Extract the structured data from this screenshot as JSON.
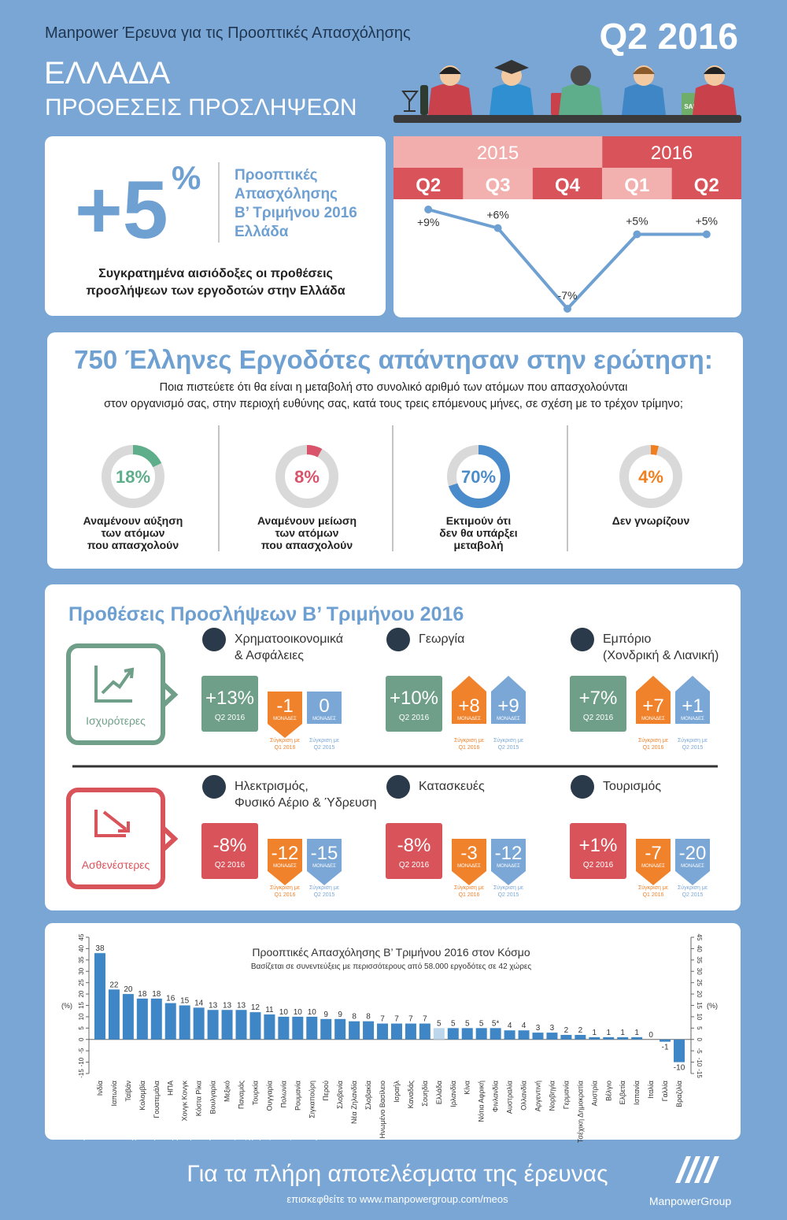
{
  "header": {
    "survey": "Manpower Έρευνα για τις Προοπτικές Απασχόλησης",
    "period": "Q2 2016",
    "country": "ΕΛΛΑΔΑ",
    "subtitle": "ΠΡΟΘΕΣΕΙΣ ΠΡΟΣΛΗΨΕΩΝ",
    "sale": "SALE"
  },
  "summary": {
    "headline": "+5",
    "unit": "%",
    "label": [
      "Προοπτικές",
      "Απασχόλησης",
      "Β’ Τριμήνου 2016",
      "Ελλάδα"
    ],
    "note": [
      "Συγκρατημένα αισιόδοξες οι προθέσεις",
      "προσλήψεων των εργοδοτών στην Ελλάδα"
    ]
  },
  "chart_data": [
    {
      "type": "line",
      "color": "#6fa0d2",
      "periods": [
        {
          "year": "2015",
          "categories": [
            "Q2",
            "Q3",
            "Q4"
          ],
          "values": [
            9,
            6,
            -7
          ],
          "value_labels": [
            "+9%",
            "+6%",
            "-7%"
          ]
        },
        {
          "year": "2016",
          "categories": [
            "Q1",
            "Q2"
          ],
          "values": [
            5,
            5
          ],
          "value_labels": [
            "+5%",
            "+5%"
          ]
        }
      ]
    },
    {
      "type": "bar",
      "title": "Προοπτικές Απασχόλησης Β’ Τριμήνου 2016 στον Κόσμο",
      "subtitle": "Βασίζεται σε συνεντεύξεις με περισσότερους από 58.000 εργοδότες σε 42 χώρες",
      "ylabel": "(%)",
      "categories": [
        "Ινδία",
        "Ιαπωνία",
        "Ταϊβάν",
        "Κολομβία",
        "Γουατεμάλα",
        "ΗΠΑ",
        "Χονγκ Κονγκ",
        "Κόστα Ρίκα",
        "Βουλγαρία",
        "Μεξικό",
        "Παναμάς",
        "Τουρκία",
        "Ουγγαρία",
        "Πολωνία",
        "Ρουμανία",
        "Σιγκαπούρη",
        "Περού",
        "Σλοβενία",
        "Νέα Ζηλανδία",
        "Σλοβακία",
        "Ηνωμένο Βασίλειο",
        "Ισραήλ",
        "Καναδάς",
        "Σουηδία",
        "Ελλάδα",
        "Ιρλανδία",
        "Κίνα",
        "Νότια Αφρική",
        "Φινλανδία",
        "Αυστραλία",
        "Ολλανδία",
        "Αργεντινή",
        "Νορβηγία",
        "Γερμανία",
        "Τσέχικη Δημοκρατία",
        "Αυστρία",
        "Βέλγιο",
        "Ελβετία",
        "Ισπανία",
        "Ιταλία",
        "Γαλλία",
        "Βραζιλία"
      ],
      "values": [
        38,
        22,
        20,
        18,
        18,
        16,
        15,
        14,
        13,
        13,
        13,
        12,
        11,
        10,
        10,
        10,
        9,
        9,
        8,
        8,
        7,
        7,
        7,
        7,
        5,
        5,
        5,
        5,
        5,
        4,
        4,
        3,
        3,
        2,
        2,
        1,
        1,
        1,
        1,
        0,
        -1,
        -10
      ],
      "value_labels": [
        "38",
        "22",
        "20",
        "18",
        "18",
        "16",
        "15",
        "14",
        "13",
        "13",
        "13",
        "12",
        "11",
        "10",
        "10",
        "10",
        "9",
        "9",
        "8",
        "8",
        "7",
        "7",
        "7",
        "7",
        "5",
        "5",
        "5",
        "5",
        "5*",
        "4",
        "4",
        "3",
        "3",
        "2",
        "2",
        "1",
        "1",
        "1",
        "1",
        "0",
        "-1",
        "-10"
      ],
      "color": "#3f86c6",
      "highlight": "Ελλάδα",
      "highlight_color": "#bcd6ec",
      "ylim": [
        -15,
        45
      ],
      "yticks": [
        -15,
        -10,
        -5,
        0,
        5,
        10,
        15,
        20,
        25,
        30,
        35,
        40,
        45
      ]
    }
  ],
  "survey": {
    "title": "750 Έλληνες Εργοδότες απάντησαν στην ερώτηση:",
    "question": [
      "Ποια πιστεύετε ότι θα είναι η μεταβολή στο συνολικό αριθμό των ατόμων που απασχολούνται",
      "στον οργανισμό σας, στην περιοχή ευθύνης σας, κατά τους τρεις επόμενους μήνες, σε σχέση με το τρέχον τρίμηνο;"
    ],
    "values": [
      18,
      8,
      70,
      4
    ],
    "value_labels": [
      "18%",
      "8%",
      "70%",
      "4%"
    ],
    "labels": [
      [
        "Αναμένουν αύξηση",
        "των ατόμων",
        "που απασχολούν"
      ],
      [
        "Αναμένουν μείωση",
        "των ατόμων",
        "που απασχολούν"
      ],
      [
        "Εκτιμούν ότι",
        "δεν θα υπάρξει",
        "μεταβολή"
      ],
      [
        "Δεν γνωρίζουν"
      ]
    ],
    "colors": [
      "#5fae8b",
      "#d9536a",
      "#4a8ccb",
      "#f07f1f"
    ]
  },
  "sectors": {
    "title": "Προθέσεις Προσλήψεων Β’ Τριμήνου 2016",
    "period": "Q2 2016",
    "unit": "ΜΟΝΑΔΕΣ",
    "caption_q1": [
      "Σύγκριση με",
      "Q1 2016"
    ],
    "caption_q2_2015": [
      "Σύγκριση με",
      "Q2 2015"
    ],
    "groups": [
      {
        "label": "Ισχυρότερες",
        "color": "#6f9e89",
        "items": [
          {
            "name": [
              "Χρηματοοικονομικά",
              "& Ασφάλειες"
            ],
            "outlook": 13,
            "outlook_label": "+13%",
            "vs_q1": -1,
            "vs_q1_label": "-1",
            "vs_q2_2015": 0,
            "vs_q2_2015_label": "0"
          },
          {
            "name": [
              "Γεωργία"
            ],
            "outlook": 10,
            "outlook_label": "+10%",
            "vs_q1": 8,
            "vs_q1_label": "+8",
            "vs_q2_2015": 9,
            "vs_q2_2015_label": "+9"
          },
          {
            "name": [
              "Εμπόριο",
              "(Χονδρική & Λιανική)"
            ],
            "outlook": 7,
            "outlook_label": "+7%",
            "vs_q1": 7,
            "vs_q1_label": "+7",
            "vs_q2_2015": 1,
            "vs_q2_2015_label": "+1"
          }
        ]
      },
      {
        "label": "Ασθενέστερες",
        "color": "#d9535a",
        "items": [
          {
            "name": [
              "Ηλεκτρισμός,",
              "Φυσικό Αέριο & Ύδρευση"
            ],
            "outlook": -8,
            "outlook_label": "-8%",
            "vs_q1": -12,
            "vs_q1_label": "-12",
            "vs_q2_2015": -15,
            "vs_q2_2015_label": "-15"
          },
          {
            "name": [
              "Κατασκευές"
            ],
            "outlook": -8,
            "outlook_label": "-8%",
            "vs_q1": -3,
            "vs_q1_label": "-3",
            "vs_q2_2015": -12,
            "vs_q2_2015_label": "-12"
          },
          {
            "name": [
              "Τουρισμός"
            ],
            "outlook": 1,
            "outlook_label": "+1%",
            "vs_q1": -7,
            "vs_q1_label": "-7",
            "vs_q2_2015": -20,
            "vs_q2_2015_label": "-20"
          }
        ]
      }
    ]
  },
  "footnote": "*Τα δεδομένα είναι εποχικά προσαρμοσμένα για όλες τις χώρες εκτός από τη Φινλανδία.",
  "footer": {
    "cta": "Για τα πλήρη αποτελέσματα της έρευνας",
    "url": "επισκεφθείτε το www.manpowergroup.com/meos",
    "brand": "ManpowerGroup"
  }
}
